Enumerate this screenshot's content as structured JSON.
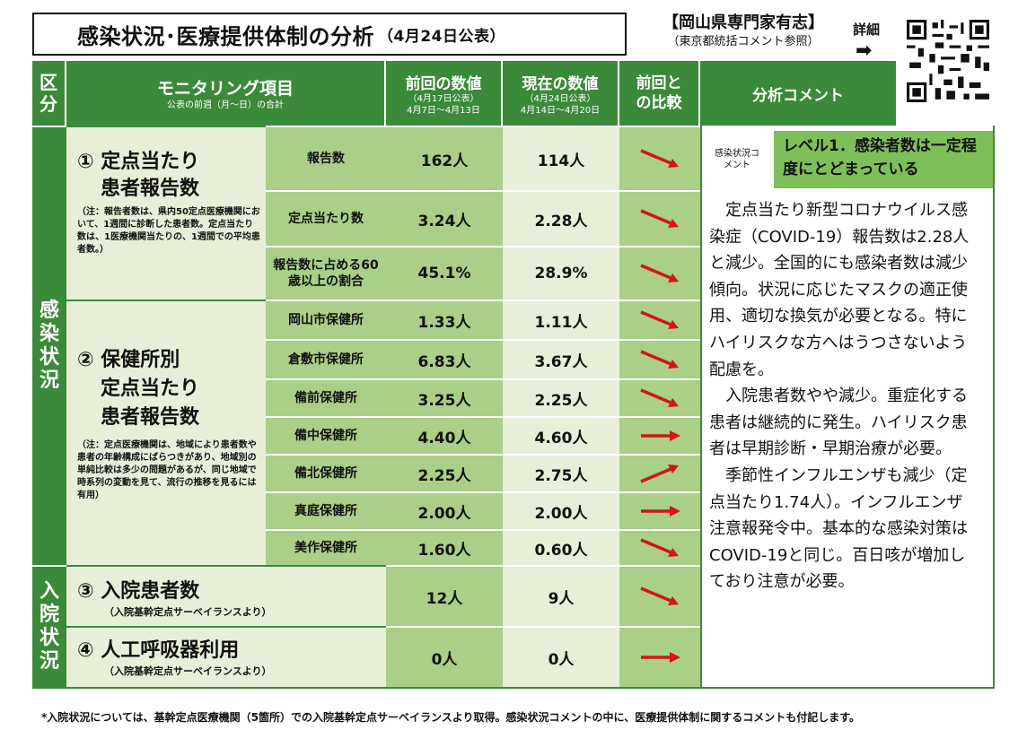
{
  "header": {
    "title": "感染状況･医療提供体制の分析",
    "date": "（4月24日公表）",
    "org": "【岡山県専門家有志】",
    "org_ref": "（東京都統括コメント参照）",
    "detail": "詳細",
    "arrow": "➡"
  },
  "columns": {
    "category": "区分",
    "item": "モニタリング項目",
    "item_sub": "公表の前週（月～日）の合計",
    "prev": "前回の数値",
    "prev_sub1": "（4月17日公表）",
    "prev_sub2": "4月7日～4月13日",
    "cur": "現在の数値",
    "cur_sub1": "（4月24日公表）",
    "cur_sub2": "4月14日～4月20日",
    "cmp": "前回との比較",
    "comment": "分析コメント"
  },
  "categories": {
    "infection": "感染状況",
    "hospital": "入院状況"
  },
  "items": {
    "item1_title": "① 定点当たり",
    "item1_title2": "患者報告数",
    "item1_note": "（注：報告者数は、県内50定点医療機関において、1週間に診断した患者数。定点当たり数は、1医療機関当たりの、1週間での平均患者数。）",
    "item2_title": "② 保健所別",
    "item2_title2": "定点当たり",
    "item2_title3": "患者報告数",
    "item2_note": "（注：定点医療機関は、地域により患者数や患者の年齢構成にばらつきがあり、地域別の単純比較は多少の問題があるが、同じ地域で時系列の変動を見て、流行の推移を見るには有用）",
    "item3_title": "③ 入院患者数",
    "item3_note": "（入院基幹定点サーベイランスより）",
    "item4_title": "④ 人工呼吸器利用",
    "item4_note": "（入院基幹定点サーベイランスより）"
  },
  "rows": [
    {
      "label": "報告数",
      "prev": "162人",
      "cur": "114人",
      "trend": "down"
    },
    {
      "label": "定点当たり数",
      "prev": "3.24人",
      "cur": "2.28人",
      "trend": "down"
    },
    {
      "label": "報告数に占める60歳以上の割合",
      "prev": "45.1%",
      "cur": "28.9%",
      "trend": "down"
    },
    {
      "label": "岡山市保健所",
      "prev": "1.33人",
      "cur": "1.11人",
      "trend": "down"
    },
    {
      "label": "倉敷市保健所",
      "prev": "6.83人",
      "cur": "3.67人",
      "trend": "down"
    },
    {
      "label": "備前保健所",
      "prev": "3.25人",
      "cur": "2.25人",
      "trend": "down"
    },
    {
      "label": "備中保健所",
      "prev": "4.40人",
      "cur": "4.60人",
      "trend": "flat"
    },
    {
      "label": "備北保健所",
      "prev": "2.25人",
      "cur": "2.75人",
      "trend": "up"
    },
    {
      "label": "真庭保健所",
      "prev": "2.00人",
      "cur": "2.00人",
      "trend": "flat"
    },
    {
      "label": "美作保健所",
      "prev": "1.60人",
      "cur": "0.60人",
      "trend": "down"
    },
    {
      "label": "",
      "prev": "12人",
      "cur": "9人",
      "trend": "down"
    },
    {
      "label": "",
      "prev": "0人",
      "cur": "0人",
      "trend": "flat"
    }
  ],
  "comment": {
    "label": "感染状況コメント",
    "level": "レベル1．感染者数は一定程度にとどまっている",
    "p1": "定点当たり新型コロナウイルス感染症（COVID-19）報告数は2.28人と減少。全国的にも感染者数は減少傾向。状況に応じたマスクの適正使用、適切な換気が必要となる。特にハイリスクな方へはうつさないよう配慮を。",
    "p2": "入院患者数やや減少。重症化する患者は継続的に発生。ハイリスク患者は早期診断・早期治療が必要。",
    "p3": "季節性インフルエンザも減少（定点当たり1.74人）。インフルエンザ注意報発令中。基本的な感染対策はCOVID-19と同じ。百日咳が増加しており注意が必要。"
  },
  "footnote": "*入院状況については、基幹定点医療機関（5箇所）での入院基幹定点サーベイランスより取得。感染状況コメントの中に、医療提供体制に関するコメントも付記します。",
  "colors": {
    "dark_green": "#3b8a3b",
    "mid_green": "#a9cf88",
    "light_green": "#e7efd9",
    "level_green": "#7fbf5a",
    "arrow_red": "#d4141c"
  }
}
